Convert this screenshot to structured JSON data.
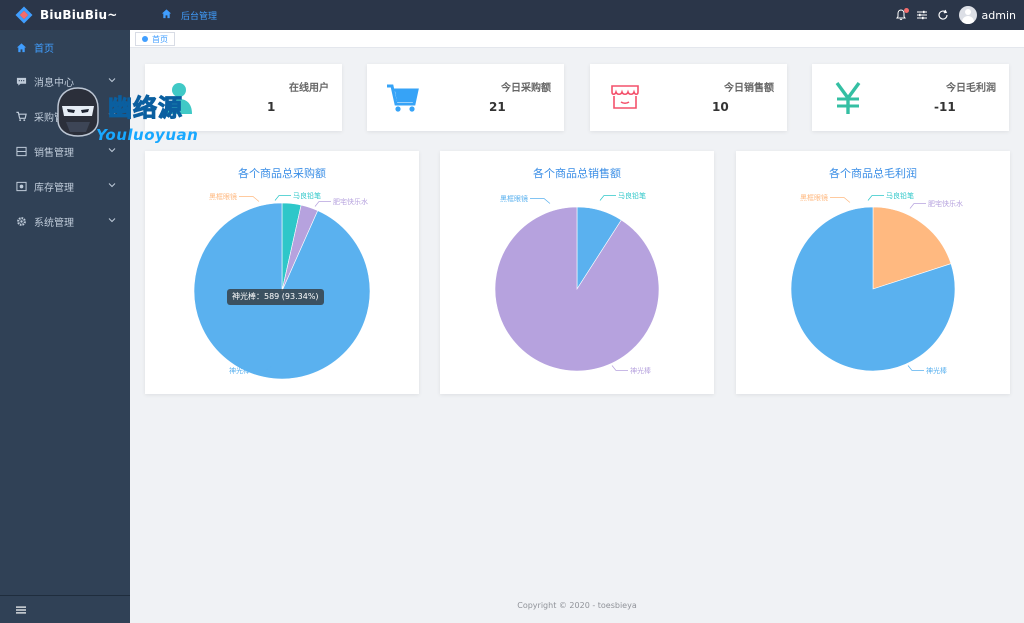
{
  "app": {
    "title": "BiuBiuBiu~"
  },
  "sidebar": {
    "items": [
      {
        "label": "首页",
        "icon": "home-icon",
        "active": true,
        "has_children": false
      },
      {
        "label": "消息中心",
        "icon": "message-icon",
        "active": false,
        "has_children": true
      },
      {
        "label": "采购管理",
        "icon": "cart-icon",
        "active": false,
        "has_children": true
      },
      {
        "label": "销售管理",
        "icon": "sale-icon",
        "active": false,
        "has_children": true
      },
      {
        "label": "库存管理",
        "icon": "storage-icon",
        "active": false,
        "has_children": true
      },
      {
        "label": "系统管理",
        "icon": "gear-icon",
        "active": false,
        "has_children": true
      }
    ]
  },
  "header": {
    "breadcrumb": "后台管理",
    "username": "admin"
  },
  "tags": {
    "home": "首页"
  },
  "cards": [
    {
      "label": "在线用户",
      "value": "1",
      "icon": "user-icon",
      "color": "#40c9c6"
    },
    {
      "label": "今日采购额",
      "value": "21",
      "icon": "cart-icon",
      "color": "#36a3f7"
    },
    {
      "label": "今日销售额",
      "value": "10",
      "icon": "shop-icon",
      "color": "#f4516c"
    },
    {
      "label": "今日毛利润",
      "value": "-11",
      "icon": "yen-icon",
      "color": "#34bfa3"
    }
  ],
  "chart_data": [
    {
      "type": "pie",
      "title": "各个商品总采购额",
      "categories": [
        "神光棒",
        "黑框眼镜",
        "马良铅笔",
        "肥宅快乐水"
      ],
      "values": [
        589,
        0,
        22,
        20
      ],
      "colors": [
        "#5ab1ef",
        "#ffb980",
        "#2ec7c9",
        "#b6a2de"
      ],
      "tooltip": "神光棒：589 (93.34%)"
    },
    {
      "type": "pie",
      "title": "各个商品总销售额",
      "categories": [
        "神光棒",
        "黑框眼镜",
        "马良铅笔"
      ],
      "values": [
        600,
        60,
        0
      ],
      "colors": [
        "#b6a2de",
        "#5ab1ef",
        "#2ec7c9"
      ]
    },
    {
      "type": "pie",
      "title": "各个商品总毛利润",
      "categories": [
        "神光棒",
        "黑框眼镜",
        "马良铅笔",
        "肥宅快乐水"
      ],
      "values": [
        80,
        20,
        0,
        0
      ],
      "colors": [
        "#5ab1ef",
        "#ffb980",
        "#2ec7c9",
        "#b6a2de"
      ]
    }
  ],
  "footer": {
    "copyright": "Copyright © 2020 - toesbieya"
  },
  "watermark": {
    "cn": "幽络源",
    "en": "Youluoyuan"
  }
}
